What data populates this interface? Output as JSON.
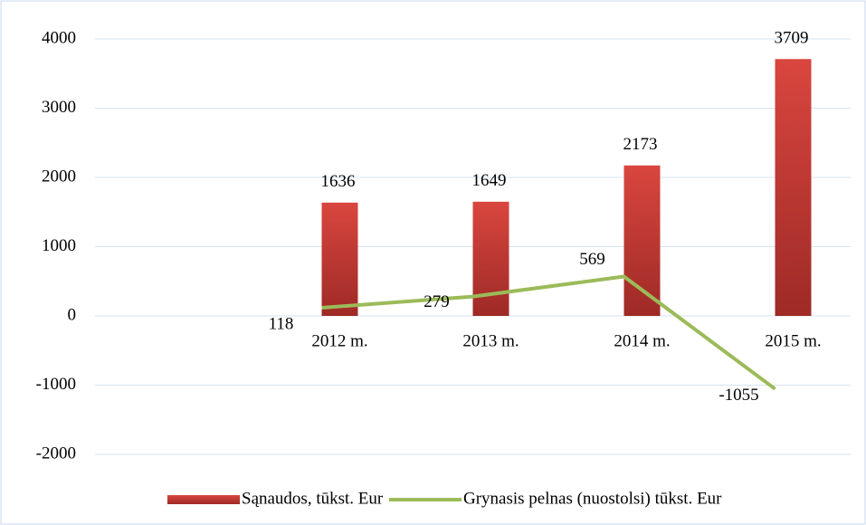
{
  "chart_data": {
    "type": "bar-line",
    "categories": [
      null,
      "2012 m.",
      "2013 m.",
      "2014 m.",
      "2015 m."
    ],
    "series": [
      {
        "name": "Sąnaudos, tūkst. Eur",
        "type": "bar",
        "color": "#c0392b",
        "values": [
          null,
          1636,
          1649,
          2173,
          3709
        ]
      },
      {
        "name": "Grynasis pelnas (nuostolsi) tūkst. Eur",
        "type": "line",
        "color": "#9bbb59",
        "values": [
          null,
          118,
          279,
          569,
          -1055
        ]
      }
    ],
    "ylim": [
      -2000,
      4000
    ],
    "yticks": [
      -2000,
      -1000,
      0,
      1000,
      2000,
      3000,
      4000
    ],
    "grid": true,
    "legend": "bottom"
  }
}
